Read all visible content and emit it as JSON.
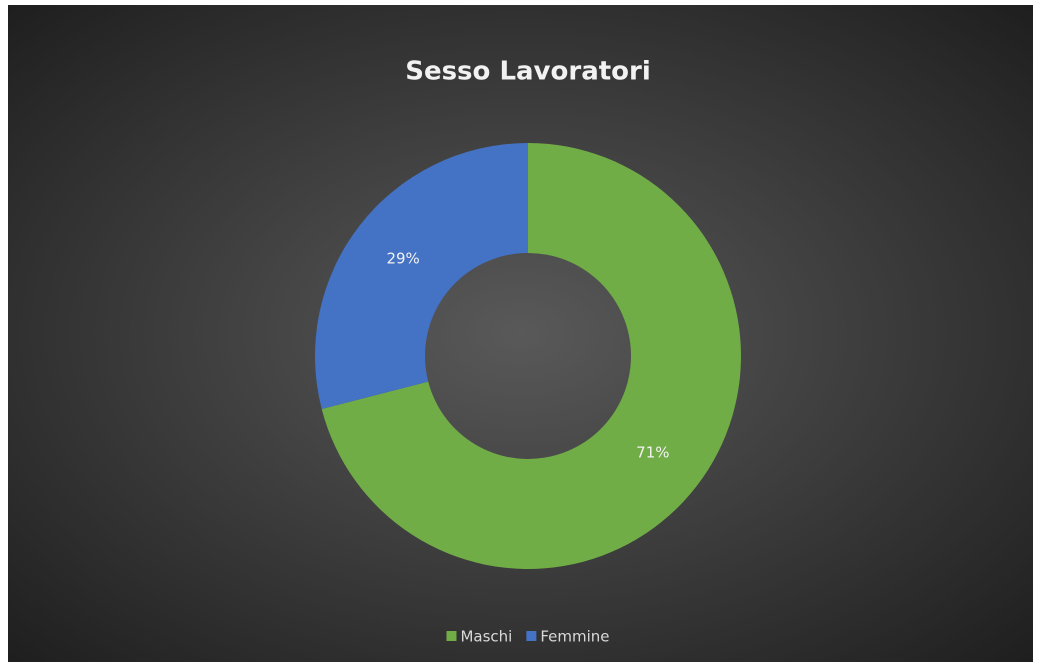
{
  "chart_data": {
    "type": "donut",
    "title": "Sesso Lavoratori",
    "categories": [
      "Maschi",
      "Femmine"
    ],
    "values": [
      71,
      29
    ],
    "value_labels": [
      "71%",
      "29%"
    ],
    "colors": [
      "#70ad47",
      "#4472c4"
    ],
    "legend": "bottom"
  }
}
